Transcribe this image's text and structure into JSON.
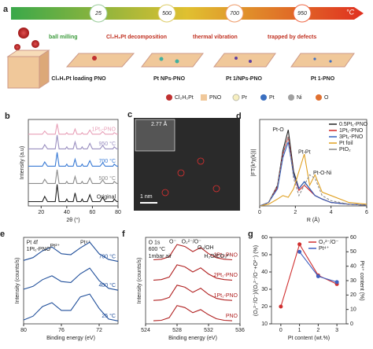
{
  "schematic": {
    "label": "a",
    "temperatures": [
      "25",
      "500",
      "700",
      "950"
    ],
    "unit": "°C",
    "steps": [
      "ball milling",
      "Cl₂H₂Pt decomposition",
      "thermal vibration",
      "trapped by defects"
    ],
    "stages": [
      "Cl₂H₂Pt loading PNO",
      "Pt NPs-PNO",
      "Pt 1/NPs-PNO",
      "Pt 1-PNO"
    ],
    "legend": [
      "Cl₂H₂Pt",
      "PNO",
      "Pr",
      "Pt",
      "Ni",
      "O"
    ]
  },
  "image": {
    "label": "c",
    "lattice": "2.77 Å",
    "scale": "1 nm"
  },
  "chart_data": [
    {
      "type": "line",
      "label": "b",
      "xlabel": "2θ (°)",
      "ylabel": "Intensity (a.u)",
      "legend": "inline",
      "xlim": [
        10,
        80
      ],
      "xticks": [
        20,
        40,
        60,
        80
      ],
      "ylim": [
        0,
        10
      ],
      "x": [
        10,
        21,
        22.8,
        25,
        31,
        32.5,
        34,
        39,
        40,
        41,
        45,
        46.5,
        48,
        51,
        52,
        53,
        56,
        58,
        60,
        66,
        68,
        70,
        76,
        77,
        79,
        80
      ],
      "series": [
        {
          "name": "Original",
          "color": "#222222",
          "values": [
            0.5,
            0.5,
            1.1,
            0.5,
            0.5,
            2.5,
            0.5,
            0.5,
            0.8,
            0.5,
            0.5,
            1.5,
            0.5,
            0.5,
            0.8,
            0.5,
            0.5,
            1.3,
            0.5,
            0.5,
            1.0,
            0.5,
            0.5,
            0.8,
            0.5,
            0.5
          ]
        },
        {
          "name": "500 °C",
          "color": "#8c8c8c",
          "values": [
            2.6,
            2.6,
            3.08,
            2.6,
            2.6,
            4.2,
            2.6,
            2.6,
            2.84,
            2.6,
            2.6,
            3.4,
            2.6,
            2.6,
            2.84,
            2.6,
            2.6,
            3.24,
            2.6,
            2.6,
            3.0,
            2.6,
            2.6,
            2.84,
            2.6,
            2.6
          ]
        },
        {
          "name": "700 °C",
          "color": "#3a7bd5",
          "values": [
            4.6,
            4.6,
            5.08,
            4.6,
            4.6,
            6.2,
            4.6,
            4.6,
            4.84,
            4.6,
            4.6,
            5.4,
            4.6,
            4.6,
            4.84,
            4.6,
            4.6,
            5.24,
            4.6,
            4.6,
            5.0,
            4.6,
            4.6,
            4.84,
            4.6,
            4.6
          ]
        },
        {
          "name": "950 °C",
          "color": "#9a8fc0",
          "values": [
            6.6,
            6.6,
            7.08,
            6.6,
            6.6,
            8.2,
            6.6,
            6.6,
            6.84,
            6.6,
            6.6,
            7.4,
            6.6,
            6.6,
            6.84,
            6.6,
            6.6,
            7.24,
            6.6,
            6.6,
            7.0,
            6.6,
            6.6,
            6.84,
            6.6,
            6.6
          ]
        },
        {
          "name": "1Pt₁-PNO",
          "color": "#e8a0b8",
          "values": [
            8.3,
            8.3,
            8.66,
            8.3,
            8.3,
            9.5,
            8.3,
            8.3,
            8.48,
            8.3,
            8.3,
            8.9,
            8.3,
            8.3,
            8.48,
            8.3,
            8.3,
            8.78,
            8.3,
            8.3,
            8.6,
            8.3,
            8.3,
            8.48,
            8.3,
            8.3
          ]
        }
      ]
    },
    {
      "type": "line",
      "label": "d",
      "xlabel": "R (Å)",
      "ylabel": "|FT(k³χ(k))|",
      "legend": "upper right",
      "xlim": [
        0,
        6
      ],
      "xticks": [
        0,
        2,
        4,
        6
      ],
      "ylim": [
        0,
        2.5
      ],
      "annotations": [
        "Pt-O",
        "Pt-Pt",
        "Pt-O-Ni"
      ],
      "x": [
        0,
        0.5,
        1,
        1.3,
        1.6,
        1.9,
        2.2,
        2.5,
        2.8,
        3.1,
        3.5,
        4,
        5,
        6
      ],
      "series": [
        {
          "name": "0.5Pt₁-PNO",
          "color": "#222222",
          "values": [
            0,
            0.1,
            0.6,
            1.6,
            2.2,
            1.0,
            0.5,
            0.7,
            0.5,
            0.3,
            0.2,
            0.1,
            0.05,
            0.02
          ]
        },
        {
          "name": "1Pt₁-PNO",
          "color": "#d22222",
          "values": [
            0,
            0.1,
            0.55,
            1.5,
            2.0,
            0.9,
            0.45,
            0.6,
            0.45,
            0.3,
            0.2,
            0.1,
            0.05,
            0.02
          ]
        },
        {
          "name": "3Pt₁-PNO",
          "color": "#3060c0",
          "values": [
            0,
            0.1,
            0.5,
            1.4,
            1.85,
            0.9,
            0.5,
            0.7,
            0.5,
            0.3,
            0.2,
            0.1,
            0.05,
            0.02
          ]
        },
        {
          "name": "Pt foil",
          "color": "#e0a020",
          "values": [
            0,
            0.05,
            0.2,
            0.3,
            0.25,
            0.5,
            1.0,
            1.5,
            0.6,
            0.9,
            0.4,
            0.3,
            0.1,
            0.05
          ]
        },
        {
          "name": "PtO₂",
          "color": "#888888",
          "style": "dashed",
          "values": [
            0,
            0.1,
            0.6,
            1.5,
            2.0,
            0.8,
            0.3,
            0.6,
            0.9,
            0.8,
            0.3,
            0.15,
            0.05,
            0.02
          ]
        }
      ]
    },
    {
      "type": "line",
      "label": "e",
      "xlabel": "Binding energy (eV)",
      "ylabel": "Intensity (counts/s)",
      "legend": "inline",
      "xlim": [
        80,
        70
      ],
      "xticks": [
        80,
        76,
        72
      ],
      "ylim": [
        0,
        9
      ],
      "annotations": [
        "Pt 4f",
        "1Pt₁-PNO",
        "Pt²⁺",
        "Pt⁴⁺"
      ],
      "x": [
        80,
        79,
        78,
        77,
        76,
        75,
        74,
        73,
        72,
        71,
        70
      ],
      "series": [
        {
          "name": "700 °C",
          "color": "#1f4e9a",
          "values": [
            6.6,
            6.9,
            7.6,
            8.0,
            7.3,
            7.2,
            7.9,
            8.5,
            7.3,
            6.7,
            6.5
          ]
        },
        {
          "name": "400 °C",
          "color": "#1f4e9a",
          "values": [
            3.6,
            3.9,
            4.6,
            5.0,
            4.4,
            4.3,
            5.2,
            5.8,
            4.5,
            3.7,
            3.5
          ]
        },
        {
          "name": "25 °C",
          "color": "#1f4e9a",
          "values": [
            0.4,
            0.8,
            1.8,
            2.2,
            1.4,
            1.4,
            2.8,
            3.1,
            1.6,
            0.5,
            0.3
          ]
        }
      ]
    },
    {
      "type": "line",
      "label": "f",
      "xlabel": "Binding energy (eV)",
      "ylabel": "Intensity (counts/s)",
      "legend": "inline",
      "xlim": [
        524,
        536
      ],
      "xticks": [
        524,
        528,
        532,
        536
      ],
      "ylim": [
        0,
        8.5
      ],
      "annotations": [
        "O 1s",
        "600 °C",
        "1mbar air",
        "O⁻",
        "O₂²⁻/O⁻",
        "O₂/OH",
        "H₂O/CO₃²⁻"
      ],
      "x": [
        525,
        526,
        527,
        528,
        529,
        530,
        531,
        532,
        533,
        534,
        535
      ],
      "series": [
        {
          "name": "PNO",
          "color": "#b02020",
          "values": [
            0.3,
            0.35,
            0.6,
            1.8,
            1.6,
            1.1,
            1.4,
            0.9,
            0.5,
            0.35,
            0.3
          ]
        },
        {
          "name": "1Pt₁-PNO",
          "color": "#b02020",
          "values": [
            2.3,
            2.35,
            2.6,
            3.8,
            3.6,
            3.1,
            3.5,
            2.9,
            2.5,
            2.35,
            2.3
          ]
        },
        {
          "name": "2Pt₁-PNO",
          "color": "#b02020",
          "values": [
            4.3,
            4.35,
            4.6,
            5.8,
            5.6,
            5.1,
            5.5,
            4.9,
            4.5,
            4.35,
            4.3
          ]
        },
        {
          "name": "3Pt₁-PNO",
          "color": "#b02020",
          "values": [
            6.3,
            6.35,
            6.6,
            7.8,
            7.6,
            7.1,
            7.5,
            6.9,
            6.5,
            6.35,
            6.3
          ]
        }
      ]
    },
    {
      "type": "line",
      "label": "g",
      "xlabel": "Pt content (wt.%)",
      "ylabel": "(O₂²⁻/O⁻)/(O₂²⁻/O⁻+O²⁻) (%)",
      "y2label": "Pt⁴⁺ content (%)",
      "legend": "upper right",
      "markers": true,
      "xlim": [
        -0.5,
        3.5
      ],
      "xticks": [
        0,
        1,
        2,
        3
      ],
      "ylim": [
        10,
        60
      ],
      "yticks": [
        10,
        20,
        30,
        40,
        50,
        60
      ],
      "y2lim": [
        0,
        60
      ],
      "y2ticks": [
        0,
        10,
        20,
        30,
        40,
        50,
        60
      ],
      "x": [
        0,
        1,
        2,
        3
      ],
      "series": [
        {
          "name": "O₂²⁻/O⁻",
          "color": "#d03030",
          "values": [
            20,
            56,
            38,
            33
          ]
        },
        {
          "name": "Pt⁴⁺",
          "color": "#4060c0",
          "axis": "y2",
          "values": [
            null,
            50,
            33,
            29
          ]
        }
      ]
    }
  ]
}
